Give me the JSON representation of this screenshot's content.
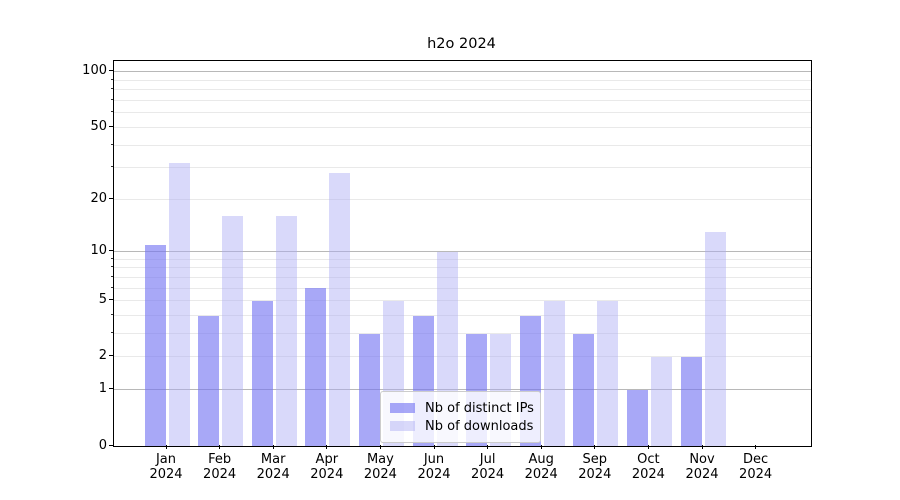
{
  "title": "h2o 2024",
  "chart_data": {
    "type": "bar",
    "title": "h2o 2024",
    "categories": [
      "Jan 2024",
      "Feb 2024",
      "Mar 2024",
      "Apr 2024",
      "May 2024",
      "Jun 2024",
      "Jul 2024",
      "Aug 2024",
      "Sep 2024",
      "Oct 2024",
      "Nov 2024",
      "Dec 2024"
    ],
    "x_tick_line1": [
      "Jan",
      "Feb",
      "Mar",
      "Apr",
      "May",
      "Jun",
      "Jul",
      "Aug",
      "Sep",
      "Oct",
      "Nov",
      "Dec"
    ],
    "x_tick_line2": [
      "2024",
      "2024",
      "2024",
      "2024",
      "2024",
      "2024",
      "2024",
      "2024",
      "2024",
      "2024",
      "2024",
      "2024"
    ],
    "series": [
      {
        "name": "Nb of distinct IPs",
        "values": [
          11,
          4,
          5,
          6,
          3,
          4,
          3,
          4,
          3,
          1,
          2,
          0
        ],
        "color_rgba": "rgba(115,115,242,0.62)",
        "apparent_hex": "#a8a8f6"
      },
      {
        "name": "Nb of downloads",
        "values": [
          32,
          16,
          16,
          28,
          5,
          10,
          3,
          5,
          5,
          2,
          13,
          0
        ],
        "color_rgba": "rgba(170,170,245,0.45)",
        "apparent_hex": "#d8d8fa"
      }
    ],
    "yscale": "log1p",
    "ylim": [
      0,
      115
    ],
    "y_tick_labels": [
      100,
      50,
      20,
      10,
      5,
      2,
      1,
      0
    ],
    "y_major_gridlines": [
      1,
      10,
      100
    ],
    "y_minor_gridlines": [
      2,
      3,
      4,
      5,
      6,
      7,
      8,
      9,
      20,
      30,
      40,
      50,
      60,
      70,
      80,
      90
    ],
    "y_unlabeled_minor_ticks": [
      3,
      4,
      6,
      7,
      8,
      9,
      30,
      40,
      60,
      70,
      80,
      90
    ],
    "grid": true,
    "legend_position": "lower center",
    "colors": {
      "major_grid": "#b8b8b8",
      "minor_grid": "#e9e9e9",
      "spine": "#000000",
      "background": "#ffffff"
    }
  }
}
